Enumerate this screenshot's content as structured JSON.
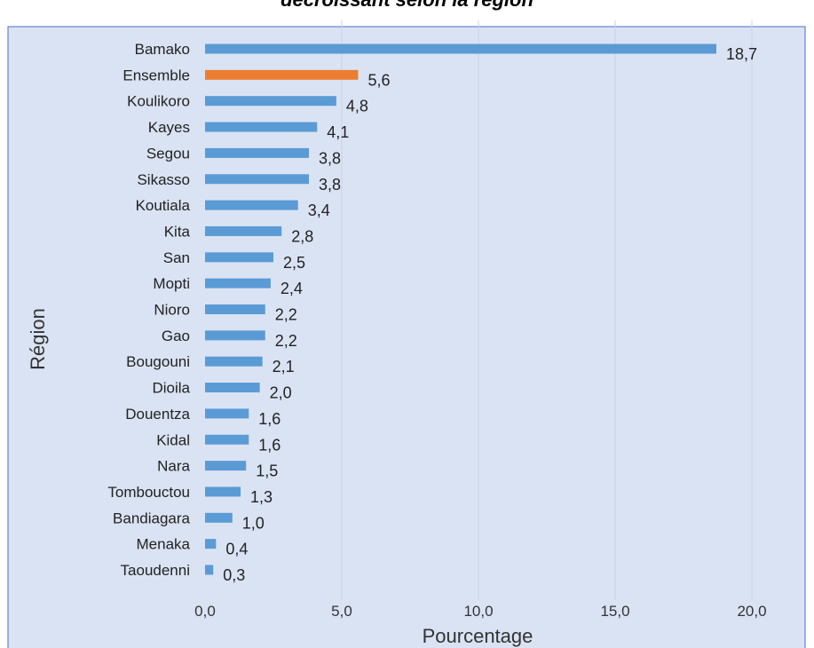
{
  "title_fragment": "décroissant selon la région",
  "colors": {
    "background": "#dae3f3",
    "bar": "#5b9bd5",
    "bar_highlight": "#ed7d31",
    "gridline": "#c9d3e6",
    "border": "#4472c4"
  },
  "chart_data": {
    "type": "bar",
    "orientation": "horizontal",
    "title": "décroissant selon la région",
    "xlabel": "Pourcentage",
    "ylabel": "Région",
    "xlim": [
      0,
      20
    ],
    "xticks": [
      "0,0",
      "5,0",
      "10,0",
      "15,0",
      "20,0"
    ],
    "xtick_values": [
      0,
      5,
      10,
      15,
      20
    ],
    "grid": "vertical",
    "legend": "none",
    "highlight_category": "Ensemble",
    "categories": [
      "Bamako",
      "Ensemble",
      "Koulikoro",
      "Kayes",
      "Segou",
      "Sikasso",
      "Koutiala",
      "Kita",
      "San",
      "Mopti",
      "Nioro",
      "Gao",
      "Bougouni",
      "Dioila",
      "Douentza",
      "Kidal",
      "Nara",
      "Tombouctou",
      "Bandiagara",
      "Menaka",
      "Taoudenni"
    ],
    "values": [
      18.7,
      5.6,
      4.8,
      4.1,
      3.8,
      3.8,
      3.4,
      2.8,
      2.5,
      2.4,
      2.2,
      2.2,
      2.1,
      2.0,
      1.6,
      1.6,
      1.5,
      1.3,
      1.0,
      0.4,
      0.3
    ],
    "value_labels": [
      "18,7",
      "5,6",
      "4,8",
      "4,1",
      "3,8",
      "3,8",
      "3,4",
      "2,8",
      "2,5",
      "2,4",
      "2,2",
      "2,2",
      "2,1",
      "2,0",
      "1,6",
      "1,6",
      "1,5",
      "1,3",
      "1,0",
      "0,4",
      "0,3"
    ]
  }
}
